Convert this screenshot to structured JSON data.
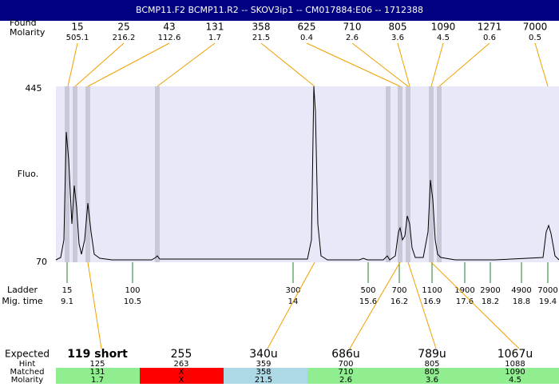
{
  "header": {
    "title": "BCMP11.F2  BCMP11.R2 -- SKOV3ip1 -- CM017884:E06 -- 1712388"
  },
  "top_labels": {
    "found": "Found",
    "molarity": "Molarity"
  },
  "peaks": [
    {
      "size": "15",
      "molarity": "505.1"
    },
    {
      "size": "25",
      "molarity": "216.2"
    },
    {
      "size": "43",
      "molarity": "112.6"
    },
    {
      "size": "131",
      "molarity": "1.7"
    },
    {
      "size": "358",
      "molarity": "21.5"
    },
    {
      "size": "625",
      "molarity": "0.4"
    },
    {
      "size": "710",
      "molarity": "2.6"
    },
    {
      "size": "805",
      "molarity": "3.6"
    },
    {
      "size": "1090",
      "molarity": "4.5"
    },
    {
      "size": "1271",
      "molarity": "0.6"
    },
    {
      "size": "7000",
      "molarity": "0.5"
    }
  ],
  "y_axis": {
    "label": "Fluo.",
    "top": "445",
    "bottom": "70"
  },
  "ladder": {
    "label": "Ladder",
    "time_label": "Mig. time",
    "entries": [
      {
        "size": "15",
        "time": "9.1"
      },
      {
        "size": "100",
        "time": "10.5"
      },
      {
        "size": "300",
        "time": "14"
      },
      {
        "size": "500",
        "time": "15.6"
      },
      {
        "size": "700",
        "time": "16.2"
      },
      {
        "size": "1100",
        "time": "16.9"
      },
      {
        "size": "1900",
        "time": "17.6"
      },
      {
        "size": "2900",
        "time": "18.2"
      },
      {
        "size": "4900",
        "time": "18.8"
      },
      {
        "size": "7000",
        "time": "19.4"
      }
    ]
  },
  "table": {
    "row_labels": [
      "Expected",
      "Hint",
      "Matched",
      "Molarity"
    ],
    "columns": [
      {
        "expected": "119 short",
        "hint": "125",
        "matched": "131",
        "molarity": "1.7",
        "color": "#90ee90"
      },
      {
        "expected": "255",
        "hint": "263",
        "matched": "X",
        "molarity": "X",
        "color": "#ff0000"
      },
      {
        "expected": "340u",
        "hint": "359",
        "matched": "358",
        "molarity": "21.5",
        "color": "#add8e6"
      },
      {
        "expected": "686u",
        "hint": "700",
        "matched": "710",
        "molarity": "2.6",
        "color": "#90ee90"
      },
      {
        "expected": "789u",
        "hint": "805",
        "matched": "805",
        "molarity": "3.6",
        "color": "#90ee90"
      },
      {
        "expected": "1067u",
        "hint": "1088",
        "matched": "1090",
        "molarity": "4.5",
        "color": "#90ee90"
      }
    ]
  }
}
